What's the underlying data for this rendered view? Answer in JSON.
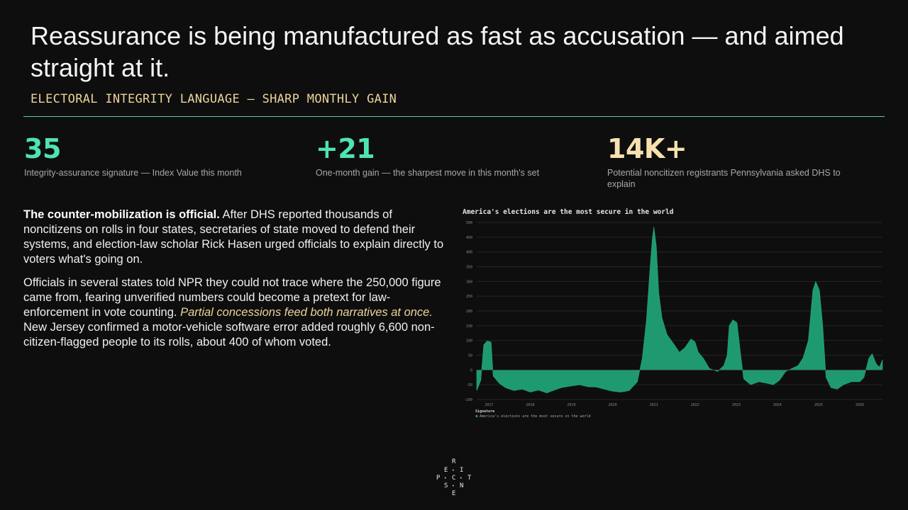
{
  "title": "Reassurance is being manufactured as fast as accusation — and aimed straight at it.",
  "kicker": "ELECTORAL INTEGRITY LANGUAGE — SHARP MONTHLY GAIN",
  "stats": [
    {
      "value": "35",
      "label": "Integrity-assurance signature — Index Value this month"
    },
    {
      "value": "+21",
      "label": "One-month gain — the sharpest move in this month's set"
    },
    {
      "value": "14K+",
      "label": "Potential noncitizen registrants Pennsylvania asked DHS to explain"
    }
  ],
  "body": {
    "p1_lead": "The counter-mobilization is official.",
    "p1_rest": " After DHS reported thousands of noncitizens on rolls in four states, secretaries of state moved to defend their systems, and election-law scholar Rick Hasen urged officials to explain directly to voters what's going on.",
    "p2_a": "Officials in several states told NPR they could not trace where the 250,000 figure came from, fearing unverified numbers could become a pretext for law-enforcement in vote counting. ",
    "p2_em": "Partial concessions feed both narratives at once.",
    "p2_b": " New Jersey confirmed a motor-vehicle software error added roughly 6,600 non-citizen-flagged people to its rolls, about 400 of whom voted."
  },
  "logo": {
    "letters": [
      "R",
      "E",
      "I",
      "P",
      "C",
      "T",
      "S",
      "N",
      "E"
    ]
  },
  "colors": {
    "accent": "#4fe3b0",
    "gold": "#ecd39a",
    "series": "#1f9a70",
    "rule": "#5ccaa5"
  },
  "chart_data": {
    "type": "area",
    "title": "America's elections are the most secure in the world",
    "legend_title": "Signature",
    "legend_placement": "bottom-left",
    "grid": true,
    "ylim": [
      -100,
      500
    ],
    "yticks": [
      -100,
      -50,
      0,
      50,
      100,
      150,
      200,
      250,
      300,
      350,
      400,
      450,
      500
    ],
    "xlim": [
      2016.7,
      2026.55
    ],
    "xticks": [
      "2017",
      "2018",
      "2019",
      "2020",
      "2021",
      "2022",
      "2023",
      "2024",
      "2025",
      "2026"
    ],
    "series": [
      {
        "name": "America's elections are the most secure in the world",
        "color": "#1f9a70",
        "points": [
          [
            2016.7,
            -70
          ],
          [
            2016.8,
            -35
          ],
          [
            2016.87,
            85
          ],
          [
            2016.95,
            98
          ],
          [
            2017.05,
            95
          ],
          [
            2017.1,
            -20
          ],
          [
            2017.25,
            -45
          ],
          [
            2017.4,
            -60
          ],
          [
            2017.6,
            -70
          ],
          [
            2017.8,
            -65
          ],
          [
            2018.0,
            -75
          ],
          [
            2018.2,
            -68
          ],
          [
            2018.4,
            -78
          ],
          [
            2018.55,
            -70
          ],
          [
            2018.75,
            -60
          ],
          [
            2018.95,
            -55
          ],
          [
            2019.2,
            -50
          ],
          [
            2019.4,
            -57
          ],
          [
            2019.6,
            -58
          ],
          [
            2019.8,
            -65
          ],
          [
            2020.0,
            -72
          ],
          [
            2020.2,
            -75
          ],
          [
            2020.4,
            -70
          ],
          [
            2020.6,
            -40
          ],
          [
            2020.72,
            40
          ],
          [
            2020.82,
            170
          ],
          [
            2020.9,
            330
          ],
          [
            2020.96,
            440
          ],
          [
            2021.0,
            485
          ],
          [
            2021.06,
            420
          ],
          [
            2021.12,
            260
          ],
          [
            2021.2,
            175
          ],
          [
            2021.32,
            120
          ],
          [
            2021.5,
            85
          ],
          [
            2021.62,
            60
          ],
          [
            2021.75,
            75
          ],
          [
            2021.9,
            105
          ],
          [
            2022.0,
            95
          ],
          [
            2022.08,
            60
          ],
          [
            2022.2,
            40
          ],
          [
            2022.35,
            5
          ],
          [
            2022.55,
            -5
          ],
          [
            2022.7,
            15
          ],
          [
            2022.78,
            50
          ],
          [
            2022.83,
            150
          ],
          [
            2022.92,
            170
          ],
          [
            2023.02,
            160
          ],
          [
            2023.1,
            60
          ],
          [
            2023.18,
            -30
          ],
          [
            2023.35,
            -50
          ],
          [
            2023.55,
            -40
          ],
          [
            2023.75,
            -45
          ],
          [
            2023.9,
            -50
          ],
          [
            2024.05,
            -35
          ],
          [
            2024.2,
            -5
          ],
          [
            2024.35,
            5
          ],
          [
            2024.5,
            15
          ],
          [
            2024.62,
            40
          ],
          [
            2024.75,
            100
          ],
          [
            2024.86,
            270
          ],
          [
            2024.93,
            300
          ],
          [
            2025.02,
            270
          ],
          [
            2025.1,
            150
          ],
          [
            2025.18,
            -25
          ],
          [
            2025.3,
            -60
          ],
          [
            2025.45,
            -65
          ],
          [
            2025.6,
            -50
          ],
          [
            2025.8,
            -40
          ],
          [
            2026.0,
            -40
          ],
          [
            2026.1,
            -25
          ],
          [
            2026.22,
            40
          ],
          [
            2026.3,
            55
          ],
          [
            2026.4,
            20
          ],
          [
            2026.48,
            10
          ],
          [
            2026.55,
            35
          ]
        ]
      }
    ]
  }
}
